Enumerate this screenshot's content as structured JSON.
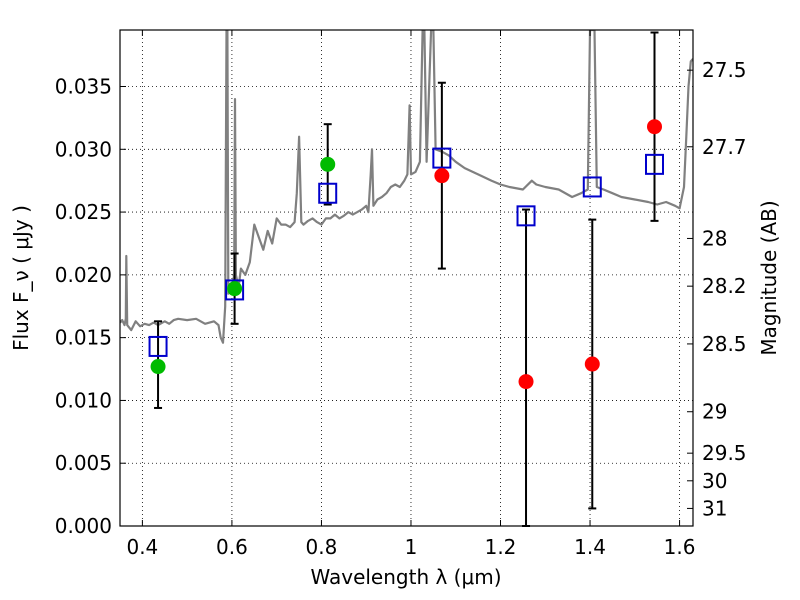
{
  "chart_data": {
    "type": "scatter",
    "xlabel": "Wavelength  λ (μm)",
    "ylabel": "Flux  F_ν  ( μJy )",
    "ylabel_right": "Magnitude (AB)",
    "xlim": [
      0.35,
      1.63
    ],
    "ylim": [
      0.0,
      0.0395
    ],
    "grid": true,
    "x_ticks": [
      0.4,
      0.6,
      0.8,
      1.0,
      1.2,
      1.4,
      1.6
    ],
    "x_tick_labels": [
      "0.4",
      "0.6",
      "0.8",
      "1",
      "1.2",
      "1.4",
      "1.6"
    ],
    "y_ticks": [
      0.0,
      0.005,
      0.01,
      0.015,
      0.02,
      0.025,
      0.03,
      0.035
    ],
    "y_tick_labels": [
      "0.000",
      "0.005",
      "0.010",
      "0.015",
      "0.020",
      "0.025",
      "0.030",
      "0.035"
    ],
    "right_ticks": [
      {
        "label": "27.5",
        "flux": 0.0363
      },
      {
        "label": "27.7",
        "flux": 0.0302
      },
      {
        "label": "28",
        "flux": 0.0229
      },
      {
        "label": "28.2",
        "flux": 0.0191
      },
      {
        "label": "28.5",
        "flux": 0.0145
      },
      {
        "label": "29",
        "flux": 0.0091
      },
      {
        "label": "29.5",
        "flux": 0.0058
      },
      {
        "label": "30",
        "flux": 0.0036
      },
      {
        "label": "31",
        "flux": 0.0014
      }
    ],
    "colors": {
      "spectrum": "#808080",
      "green": "#00bb00",
      "red": "#ff0000",
      "model_box": "#0000cc",
      "errorbar": "#000000"
    },
    "series": [
      {
        "marker": "square",
        "color": "#0000cc",
        "points": [
          {
            "x": 0.435,
            "y": 0.0143
          },
          {
            "x": 0.606,
            "y": 0.0188
          },
          {
            "x": 0.814,
            "y": 0.0265
          },
          {
            "x": 1.069,
            "y": 0.0293
          },
          {
            "x": 1.257,
            "y": 0.0247
          },
          {
            "x": 1.405,
            "y": 0.027
          },
          {
            "x": 1.544,
            "y": 0.0288
          }
        ]
      },
      {
        "marker": "circle",
        "color": "#00bb00",
        "points": [
          {
            "x": 0.435,
            "y": 0.0127,
            "err_low": 0.0094,
            "err_high": 0.0163
          },
          {
            "x": 0.606,
            "y": 0.0189,
            "err_low": 0.0161,
            "err_high": 0.0217
          },
          {
            "x": 0.814,
            "y": 0.0288,
            "err_low": 0.0256,
            "err_high": 0.032
          }
        ]
      },
      {
        "marker": "circle",
        "color": "#ff0000",
        "points": [
          {
            "x": 1.069,
            "y": 0.0279,
            "err_low": 0.0205,
            "err_high": 0.0353
          },
          {
            "x": 1.257,
            "y": 0.0115,
            "err_low": 0.0,
            "err_high": 0.0252
          },
          {
            "x": 1.405,
            "y": 0.0129,
            "err_low": 0.0014,
            "err_high": 0.0244
          },
          {
            "x": 1.544,
            "y": 0.0318,
            "err_low": 0.0243,
            "err_high": 0.0393
          }
        ]
      }
    ],
    "spectrum": [
      [
        0.35,
        0.0162
      ],
      [
        0.355,
        0.0164
      ],
      [
        0.36,
        0.016
      ],
      [
        0.363,
        0.0165
      ],
      [
        0.364,
        0.0215
      ],
      [
        0.366,
        0.016
      ],
      [
        0.375,
        0.0156
      ],
      [
        0.385,
        0.0163
      ],
      [
        0.395,
        0.0159
      ],
      [
        0.405,
        0.0161
      ],
      [
        0.415,
        0.016
      ],
      [
        0.425,
        0.0162
      ],
      [
        0.435,
        0.016
      ],
      [
        0.45,
        0.0163
      ],
      [
        0.46,
        0.0161
      ],
      [
        0.47,
        0.0164
      ],
      [
        0.48,
        0.0165
      ],
      [
        0.5,
        0.0164
      ],
      [
        0.52,
        0.0165
      ],
      [
        0.54,
        0.0161
      ],
      [
        0.56,
        0.0163
      ],
      [
        0.57,
        0.016
      ],
      [
        0.575,
        0.015
      ],
      [
        0.58,
        0.0146
      ],
      [
        0.585,
        0.0175
      ],
      [
        0.588,
        0.0395
      ],
      [
        0.59,
        0.0395
      ],
      [
        0.592,
        0.0185
      ],
      [
        0.6,
        0.019
      ],
      [
        0.605,
        0.02
      ],
      [
        0.607,
        0.034
      ],
      [
        0.609,
        0.02
      ],
      [
        0.615,
        0.019
      ],
      [
        0.62,
        0.0205
      ],
      [
        0.63,
        0.02
      ],
      [
        0.64,
        0.021
      ],
      [
        0.65,
        0.024
      ],
      [
        0.66,
        0.023
      ],
      [
        0.67,
        0.022
      ],
      [
        0.68,
        0.0235
      ],
      [
        0.69,
        0.0225
      ],
      [
        0.7,
        0.0245
      ],
      [
        0.71,
        0.024
      ],
      [
        0.72,
        0.024
      ],
      [
        0.73,
        0.0238
      ],
      [
        0.74,
        0.0242
      ],
      [
        0.745,
        0.0265
      ],
      [
        0.75,
        0.031
      ],
      [
        0.755,
        0.0242
      ],
      [
        0.76,
        0.024
      ],
      [
        0.77,
        0.0243
      ],
      [
        0.78,
        0.0245
      ],
      [
        0.79,
        0.0242
      ],
      [
        0.8,
        0.024
      ],
      [
        0.81,
        0.0245
      ],
      [
        0.82,
        0.0245
      ],
      [
        0.83,
        0.0248
      ],
      [
        0.84,
        0.0245
      ],
      [
        0.85,
        0.0247
      ],
      [
        0.86,
        0.025
      ],
      [
        0.87,
        0.0248
      ],
      [
        0.88,
        0.025
      ],
      [
        0.89,
        0.0252
      ],
      [
        0.9,
        0.0255
      ],
      [
        0.905,
        0.025
      ],
      [
        0.91,
        0.028
      ],
      [
        0.913,
        0.03
      ],
      [
        0.916,
        0.0255
      ],
      [
        0.925,
        0.026
      ],
      [
        0.935,
        0.0262
      ],
      [
        0.945,
        0.0265
      ],
      [
        0.955,
        0.027
      ],
      [
        0.965,
        0.0272
      ],
      [
        0.975,
        0.027
      ],
      [
        0.985,
        0.0275
      ],
      [
        0.992,
        0.028
      ],
      [
        0.997,
        0.0335
      ],
      [
        1.0,
        0.028
      ],
      [
        1.01,
        0.0282
      ],
      [
        1.02,
        0.029
      ],
      [
        1.026,
        0.0395
      ],
      [
        1.03,
        0.0395
      ],
      [
        1.035,
        0.029
      ],
      [
        1.045,
        0.0395
      ],
      [
        1.05,
        0.0395
      ],
      [
        1.055,
        0.03
      ],
      [
        1.07,
        0.0298
      ],
      [
        1.085,
        0.0295
      ],
      [
        1.1,
        0.029
      ],
      [
        1.12,
        0.0285
      ],
      [
        1.15,
        0.028
      ],
      [
        1.18,
        0.0275
      ],
      [
        1.2,
        0.0272
      ],
      [
        1.22,
        0.027
      ],
      [
        1.25,
        0.0268
      ],
      [
        1.27,
        0.0275
      ],
      [
        1.28,
        0.0272
      ],
      [
        1.3,
        0.027
      ],
      [
        1.33,
        0.0268
      ],
      [
        1.36,
        0.0262
      ],
      [
        1.38,
        0.0265
      ],
      [
        1.395,
        0.0268
      ],
      [
        1.4,
        0.0395
      ],
      [
        1.41,
        0.0395
      ],
      [
        1.415,
        0.027
      ],
      [
        1.43,
        0.0268
      ],
      [
        1.45,
        0.0265
      ],
      [
        1.47,
        0.0262
      ],
      [
        1.5,
        0.026
      ],
      [
        1.53,
        0.0258
      ],
      [
        1.55,
        0.0256
      ],
      [
        1.57,
        0.0258
      ],
      [
        1.59,
        0.0255
      ],
      [
        1.6,
        0.0253
      ],
      [
        1.61,
        0.027
      ],
      [
        1.615,
        0.031
      ],
      [
        1.62,
        0.035
      ],
      [
        1.625,
        0.037
      ],
      [
        1.63,
        0.0372
      ]
    ]
  }
}
